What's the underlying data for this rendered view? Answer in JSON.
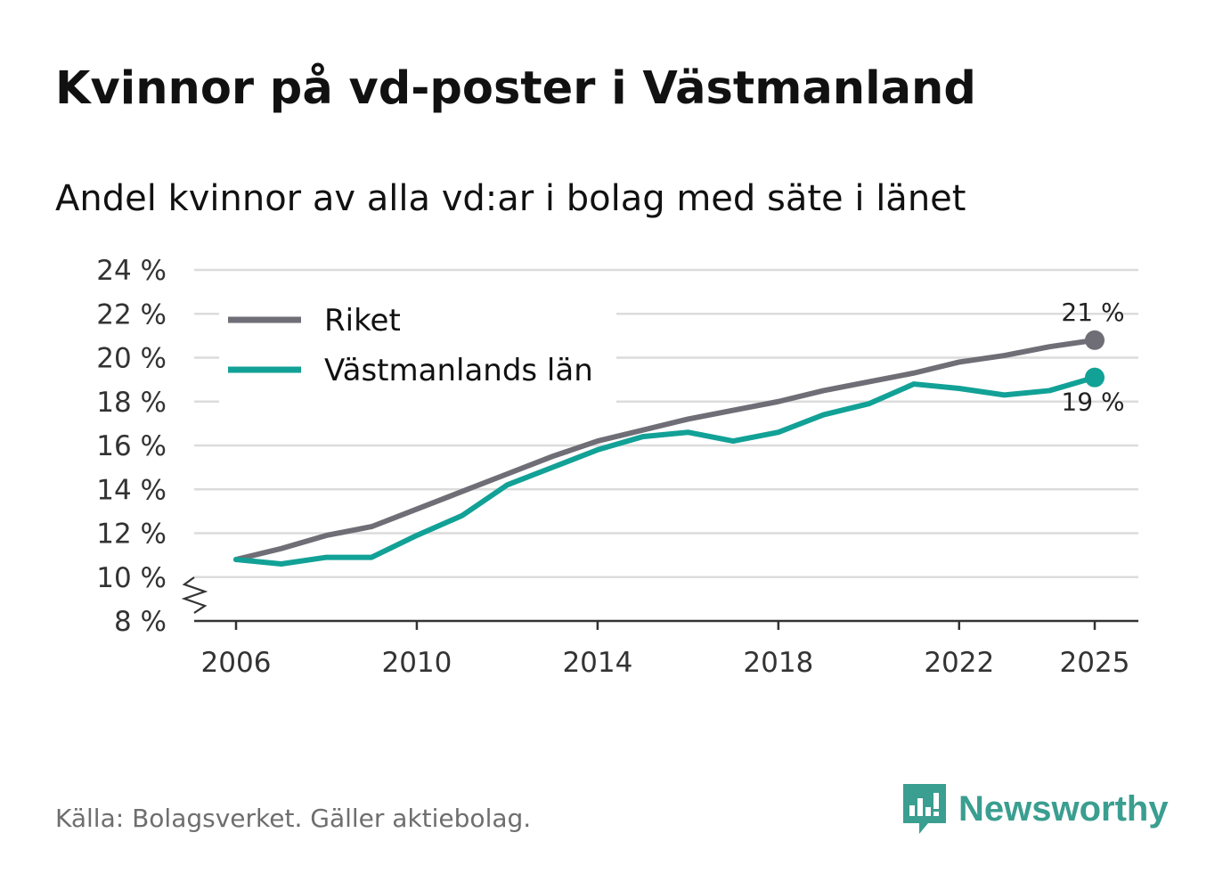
{
  "chart_data": {
    "type": "line",
    "title": "Kvinnor på vd-poster i Västmanland",
    "subtitle": "Andel kvinnor av alla vd:ar i bolag med säte i länet",
    "xlabel": "",
    "ylabel": "",
    "x": [
      2006,
      2007,
      2008,
      2009,
      2010,
      2011,
      2012,
      2013,
      2014,
      2015,
      2016,
      2017,
      2018,
      2019,
      2020,
      2021,
      2022,
      2023,
      2024,
      2025
    ],
    "x_ticks": [
      2006,
      2010,
      2014,
      2018,
      2022,
      2025
    ],
    "x_tick_labels": [
      "2006",
      "2010",
      "2014",
      "2018",
      "2022",
      "2025"
    ],
    "ylim": [
      8,
      24
    ],
    "y_ticks": [
      8,
      10,
      12,
      14,
      16,
      18,
      20,
      22,
      24
    ],
    "y_tick_labels": [
      "8 %",
      "10 %",
      "12 %",
      "14 %",
      "16 %",
      "18 %",
      "20 %",
      "22 %",
      "24 %"
    ],
    "y_axis_break": true,
    "grid": true,
    "legend_position": "top-left",
    "series": [
      {
        "name": "Riket",
        "color": "#6f6e76",
        "values": [
          10.8,
          11.3,
          11.9,
          12.3,
          13.1,
          13.9,
          14.7,
          15.5,
          16.2,
          16.7,
          17.2,
          17.6,
          18.0,
          18.5,
          18.9,
          19.3,
          19.8,
          20.1,
          20.5,
          20.8
        ],
        "end_label": "21 %"
      },
      {
        "name": "Västmanlands län",
        "color": "#12a196",
        "values": [
          10.8,
          10.6,
          10.9,
          10.9,
          11.9,
          12.8,
          14.2,
          15.0,
          15.8,
          16.4,
          16.6,
          16.2,
          16.6,
          17.4,
          17.9,
          18.8,
          18.6,
          18.3,
          18.5,
          19.1
        ],
        "end_label": "19 %"
      }
    ]
  },
  "source": "Källa: Bolagsverket. Gäller aktiebolag.",
  "brand": {
    "name": "Newsworthy",
    "icon": "newsworthy-logo-icon",
    "color": "#3a9e90"
  }
}
